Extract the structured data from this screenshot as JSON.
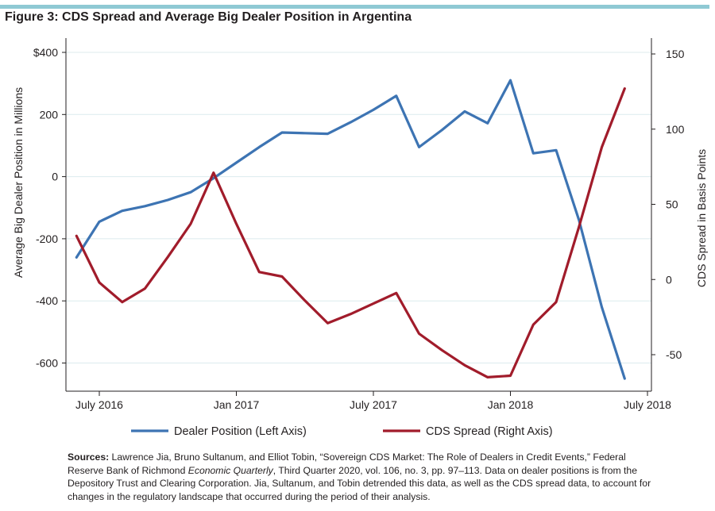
{
  "figure": {
    "title": "Figure 3: CDS Spread and Average Big Dealer Position in Argentina"
  },
  "chart_data": {
    "type": "line",
    "title": "Figure 3: CDS Spread and Average Big Dealer Position in Argentina",
    "xlabel": "",
    "ylabel_left": "Average Big Dealer Position in Millions",
    "ylabel_right": "CDS Spread in Basis Points",
    "ylim_left": [
      -680,
      400
    ],
    "ylim_right": [
      -70,
      153
    ],
    "x_ticks": [
      {
        "label": "July 2016",
        "x": 0
      },
      {
        "label": "Jan 2017",
        "x": 6
      },
      {
        "label": "July 2017",
        "x": 12
      },
      {
        "label": "Jan 2018",
        "x": 18
      },
      {
        "label": "July 2018",
        "x": 24
      }
    ],
    "y_ticks_left": [
      {
        "label": "$400",
        "value": 400
      },
      {
        "label": "200",
        "value": 200
      },
      {
        "label": "0",
        "value": 0
      },
      {
        "label": "-200",
        "value": -200
      },
      {
        "label": "-400",
        "value": -400
      },
      {
        "label": "-600",
        "value": -600
      }
    ],
    "y_ticks_right": [
      {
        "label": "150",
        "value": 150
      },
      {
        "label": "100",
        "value": 100
      },
      {
        "label": "50",
        "value": 50
      },
      {
        "label": "0",
        "value": 0
      },
      {
        "label": "-50",
        "value": -50
      }
    ],
    "series": [
      {
        "name": "Dealer Position (Left Axis)",
        "axis": "left",
        "color": "#3d74b3",
        "x": [
          -1,
          0,
          1,
          2,
          3,
          4,
          5,
          6,
          7,
          8,
          9,
          10,
          11,
          12,
          13,
          14,
          15,
          16,
          17,
          18,
          19,
          20,
          21,
          22,
          23
        ],
        "y": [
          -260,
          -145,
          -110,
          -95,
          -75,
          -50,
          -5,
          45,
          95,
          142,
          140,
          138,
          175,
          215,
          260,
          95,
          150,
          210,
          172,
          310,
          75,
          85,
          -140,
          -420,
          -650
        ]
      },
      {
        "name": "CDS Spread (Right Axis)",
        "axis": "right",
        "color": "#a11c2b",
        "x": [
          -1,
          0,
          1,
          2,
          3,
          4,
          5,
          6,
          7,
          8,
          9,
          10,
          11,
          12,
          13,
          14,
          15,
          16,
          17,
          18,
          19,
          20,
          21,
          22,
          23
        ],
        "y": [
          29,
          -2,
          -15,
          -6,
          15,
          37,
          71,
          37,
          5,
          2,
          -14,
          -29,
          -23,
          -16,
          -9,
          -36,
          -47,
          -57,
          -65,
          -64,
          -30,
          -15,
          35,
          88,
          127
        ]
      }
    ],
    "legend_position": "bottom"
  },
  "source": {
    "label": "Sources:",
    "text_1": " Lawrence Jia, Bruno Sultanum, and Elliot Tobin, “Sovereign CDS Market: The Role of Dealers in Credit Events,” Federal Reserve Bank of Richmond ",
    "journal": "Economic Quarterly",
    "text_2": ", Third Quarter 2020, vol. 106, no. 3, pp. 97–113. Data on dealer positions is from the Depository Trust and Clearing Corporation. Jia, Sultanum, and Tobin detrended this data, as well as the CDS spread data, to account for changes in the regulatory landscape that occurred during the period of their analysis."
  }
}
